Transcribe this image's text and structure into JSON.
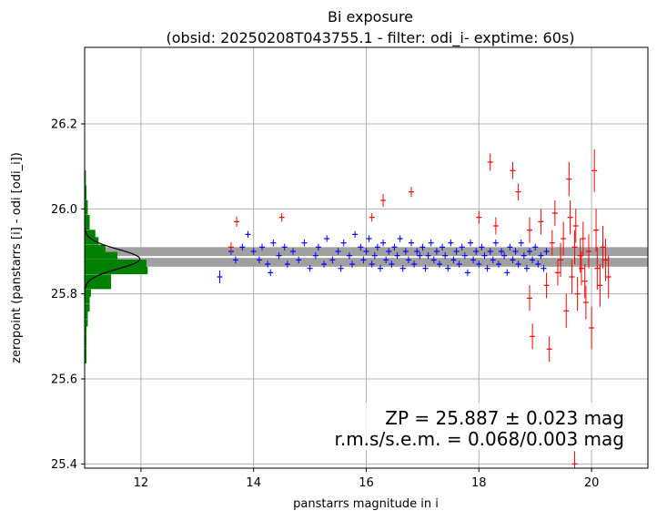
{
  "chart_data": {
    "type": "scatter",
    "title": "Bi exposure",
    "subtitle": "(obsid: 20250208T043755.1 - filter: odi_i- exptime: 60s)",
    "xlabel": "panstarrs magnitude in i",
    "ylabel": "zeropoint (panstarrs [i] - odi [odi_i])",
    "xlim": [
      11.0,
      21.0
    ],
    "ylim": [
      25.39,
      26.38
    ],
    "xticks": [
      "12",
      "14",
      "16",
      "18",
      "20"
    ],
    "yticks": [
      "25.4",
      "25.6",
      "25.8",
      "26.0",
      "26.2"
    ],
    "grid": true,
    "zp_line": 25.887,
    "zp_band": [
      25.864,
      25.91
    ],
    "annotations": [
      "ZP = 25.887 ± 0.023 mag",
      "r.m.s/s.e.m. = 0.068/0.003 mag"
    ],
    "colors": {
      "used": "#0000ff",
      "rejected": "#ff0000",
      "histogram": "#008000",
      "band": "#a0a0a0",
      "zp_line": "#ffffff",
      "grid": "#b0b0b0",
      "gauss": "#000000"
    },
    "histogram": {
      "bin_width": 0.0175,
      "bins": [
        {
          "y": 25.645,
          "count": 0.03
        },
        {
          "y": 25.662,
          "count": 0.03
        },
        {
          "y": 25.68,
          "count": 0.03
        },
        {
          "y": 25.697,
          "count": 0.03
        },
        {
          "y": 25.715,
          "count": 0.03
        },
        {
          "y": 25.732,
          "count": 0.05
        },
        {
          "y": 25.75,
          "count": 0.05
        },
        {
          "y": 25.767,
          "count": 0.08
        },
        {
          "y": 25.785,
          "count": 0.08
        },
        {
          "y": 25.802,
          "count": 0.1
        },
        {
          "y": 25.82,
          "count": 0.42
        },
        {
          "y": 25.837,
          "count": 0.42
        },
        {
          "y": 25.855,
          "count": 1.0
        },
        {
          "y": 25.872,
          "count": 0.98
        },
        {
          "y": 25.89,
          "count": 0.52
        },
        {
          "y": 25.907,
          "count": 0.33
        },
        {
          "y": 25.925,
          "count": 0.22
        },
        {
          "y": 25.942,
          "count": 0.17
        },
        {
          "y": 25.96,
          "count": 0.08
        },
        {
          "y": 25.977,
          "count": 0.08
        },
        {
          "y": 25.995,
          "count": 0.05
        },
        {
          "y": 26.012,
          "count": 0.05
        },
        {
          "y": 26.03,
          "count": 0.03
        },
        {
          "y": 26.047,
          "count": 0.03
        },
        {
          "y": 26.065,
          "count": 0.02
        },
        {
          "y": 26.082,
          "count": 0.02
        }
      ]
    },
    "gauss": {
      "mu": 25.882,
      "sigma": 0.023,
      "peak_mag": 11.98
    },
    "series": [
      {
        "role": "used",
        "points": [
          [
            13.4,
            25.84,
            0.015
          ],
          [
            13.6,
            25.9,
            0.008
          ],
          [
            13.68,
            25.88,
            0.008
          ],
          [
            13.8,
            25.91,
            0.008
          ],
          [
            13.9,
            25.94,
            0.008
          ],
          [
            14.0,
            25.9,
            0.008
          ],
          [
            14.1,
            25.88,
            0.008
          ],
          [
            14.15,
            25.91,
            0.008
          ],
          [
            14.25,
            25.87,
            0.008
          ],
          [
            14.3,
            25.85,
            0.008
          ],
          [
            14.35,
            25.92,
            0.008
          ],
          [
            14.45,
            25.89,
            0.008
          ],
          [
            14.55,
            25.91,
            0.008
          ],
          [
            14.6,
            25.87,
            0.008
          ],
          [
            14.7,
            25.9,
            0.008
          ],
          [
            14.8,
            25.88,
            0.008
          ],
          [
            14.9,
            25.92,
            0.008
          ],
          [
            15.0,
            25.86,
            0.008
          ],
          [
            15.1,
            25.89,
            0.008
          ],
          [
            15.15,
            25.91,
            0.008
          ],
          [
            15.25,
            25.87,
            0.008
          ],
          [
            15.3,
            25.93,
            0.008
          ],
          [
            15.4,
            25.88,
            0.008
          ],
          [
            15.5,
            25.9,
            0.008
          ],
          [
            15.55,
            25.86,
            0.008
          ],
          [
            15.6,
            25.92,
            0.008
          ],
          [
            15.7,
            25.89,
            0.008
          ],
          [
            15.75,
            25.87,
            0.008
          ],
          [
            15.8,
            25.94,
            0.008
          ],
          [
            15.9,
            25.91,
            0.008
          ],
          [
            15.95,
            25.88,
            0.008
          ],
          [
            16.0,
            25.9,
            0.008
          ],
          [
            16.05,
            25.93,
            0.008
          ],
          [
            16.1,
            25.87,
            0.008
          ],
          [
            16.15,
            25.89,
            0.008
          ],
          [
            16.2,
            25.91,
            0.008
          ],
          [
            16.25,
            25.86,
            0.008
          ],
          [
            16.3,
            25.92,
            0.008
          ],
          [
            16.35,
            25.88,
            0.008
          ],
          [
            16.4,
            25.9,
            0.008
          ],
          [
            16.45,
            25.87,
            0.008
          ],
          [
            16.5,
            25.91,
            0.008
          ],
          [
            16.55,
            25.89,
            0.008
          ],
          [
            16.6,
            25.93,
            0.008
          ],
          [
            16.65,
            25.86,
            0.008
          ],
          [
            16.7,
            25.9,
            0.008
          ],
          [
            16.75,
            25.88,
            0.008
          ],
          [
            16.8,
            25.92,
            0.008
          ],
          [
            16.85,
            25.87,
            0.008
          ],
          [
            16.9,
            25.9,
            0.008
          ],
          [
            16.95,
            25.89,
            0.008
          ],
          [
            17.0,
            25.91,
            0.008
          ],
          [
            17.05,
            25.86,
            0.008
          ],
          [
            17.1,
            25.89,
            0.008
          ],
          [
            17.15,
            25.92,
            0.008
          ],
          [
            17.2,
            25.88,
            0.008
          ],
          [
            17.25,
            25.9,
            0.008
          ],
          [
            17.3,
            25.87,
            0.008
          ],
          [
            17.35,
            25.91,
            0.008
          ],
          [
            17.4,
            25.89,
            0.008
          ],
          [
            17.45,
            25.86,
            0.008
          ],
          [
            17.5,
            25.92,
            0.008
          ],
          [
            17.55,
            25.88,
            0.008
          ],
          [
            17.6,
            25.9,
            0.008
          ],
          [
            17.65,
            25.87,
            0.008
          ],
          [
            17.7,
            25.91,
            0.008
          ],
          [
            17.75,
            25.89,
            0.008
          ],
          [
            17.8,
            25.85,
            0.008
          ],
          [
            17.85,
            25.92,
            0.008
          ],
          [
            17.9,
            25.88,
            0.008
          ],
          [
            17.95,
            25.9,
            0.008
          ],
          [
            18.0,
            25.87,
            0.008
          ],
          [
            18.05,
            25.91,
            0.008
          ],
          [
            18.1,
            25.89,
            0.008
          ],
          [
            18.15,
            25.86,
            0.008
          ],
          [
            18.2,
            25.9,
            0.008
          ],
          [
            18.25,
            25.88,
            0.008
          ],
          [
            18.3,
            25.92,
            0.008
          ],
          [
            18.35,
            25.87,
            0.008
          ],
          [
            18.4,
            25.9,
            0.008
          ],
          [
            18.45,
            25.89,
            0.008
          ],
          [
            18.5,
            25.85,
            0.008
          ],
          [
            18.55,
            25.91,
            0.008
          ],
          [
            18.6,
            25.88,
            0.008
          ],
          [
            18.65,
            25.9,
            0.008
          ],
          [
            18.7,
            25.87,
            0.008
          ],
          [
            18.75,
            25.92,
            0.008
          ],
          [
            18.8,
            25.89,
            0.008
          ],
          [
            18.85,
            25.86,
            0.008
          ],
          [
            18.9,
            25.9,
            0.008
          ],
          [
            18.95,
            25.88,
            0.008
          ],
          [
            19.0,
            25.91,
            0.008
          ],
          [
            19.05,
            25.87,
            0.008
          ],
          [
            19.1,
            25.89,
            0.008
          ],
          [
            19.15,
            25.86,
            0.008
          ],
          [
            19.2,
            25.9,
            0.008
          ]
        ]
      },
      {
        "role": "rejected",
        "points": [
          [
            13.6,
            25.91,
            0.012
          ],
          [
            13.7,
            25.97,
            0.012
          ],
          [
            14.5,
            25.98,
            0.01
          ],
          [
            16.1,
            25.98,
            0.01
          ],
          [
            16.3,
            26.02,
            0.015
          ],
          [
            16.8,
            26.04,
            0.012
          ],
          [
            18.0,
            25.98,
            0.015
          ],
          [
            18.2,
            26.11,
            0.02
          ],
          [
            18.3,
            25.96,
            0.02
          ],
          [
            18.6,
            26.09,
            0.02
          ],
          [
            18.7,
            26.04,
            0.02
          ],
          [
            18.9,
            25.95,
            0.03
          ],
          [
            18.9,
            25.79,
            0.03
          ],
          [
            18.95,
            25.7,
            0.03
          ],
          [
            19.1,
            25.97,
            0.03
          ],
          [
            19.2,
            25.82,
            0.03
          ],
          [
            19.25,
            25.67,
            0.03
          ],
          [
            19.3,
            25.92,
            0.03
          ],
          [
            19.35,
            25.99,
            0.03
          ],
          [
            19.4,
            25.85,
            0.03
          ],
          [
            19.45,
            25.88,
            0.04
          ],
          [
            19.5,
            25.93,
            0.04
          ],
          [
            19.55,
            25.76,
            0.04
          ],
          [
            19.6,
            26.07,
            0.04
          ],
          [
            19.62,
            25.98,
            0.04
          ],
          [
            19.65,
            25.84,
            0.04
          ],
          [
            19.7,
            25.91,
            0.04
          ],
          [
            19.72,
            25.96,
            0.04
          ],
          [
            19.75,
            25.8,
            0.04
          ],
          [
            19.8,
            25.89,
            0.04
          ],
          [
            19.82,
            25.86,
            0.04
          ],
          [
            19.85,
            25.93,
            0.04
          ],
          [
            19.88,
            25.83,
            0.04
          ],
          [
            19.9,
            25.78,
            0.04
          ],
          [
            19.95,
            25.9,
            0.04
          ],
          [
            20.0,
            25.72,
            0.05
          ],
          [
            20.05,
            26.09,
            0.05
          ],
          [
            20.08,
            25.95,
            0.05
          ],
          [
            20.1,
            25.86,
            0.05
          ],
          [
            20.15,
            25.82,
            0.05
          ],
          [
            20.2,
            25.91,
            0.05
          ],
          [
            20.25,
            25.88,
            0.05
          ],
          [
            20.3,
            25.84,
            0.05
          ],
          [
            19.7,
            25.4,
            0.03
          ]
        ]
      }
    ]
  }
}
